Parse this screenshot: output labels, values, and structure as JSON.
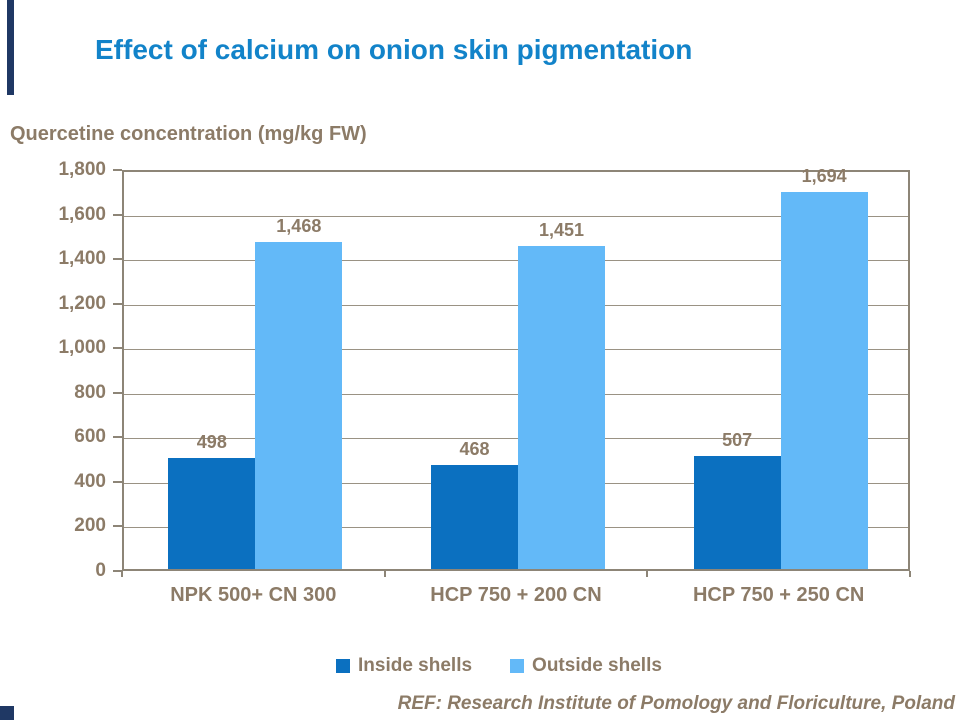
{
  "page": {
    "title": "Effect of calcium on onion skin pigmentation",
    "ref_note": "REF: Research Institute of Pomology and Floriculture, Poland"
  },
  "colors": {
    "title_blue": "#1283C9",
    "text_brown": "#8C7B67",
    "axis_line": "#8D8577",
    "grid_line": "#9A9284",
    "inside_shells_bar": "#0B70C0",
    "outside_shells_bar": "#63B9F8",
    "decor_navy": "#1F3864"
  },
  "chart_data": {
    "type": "bar",
    "title": "Effect of calcium on onion skin pigmentation",
    "xlabel": "",
    "ylabel": "Quercetine concentration (mg/kg FW)",
    "categories": [
      "NPK 500+ CN 300",
      "HCP 750 + 200 CN",
      "HCP 750 + 250 CN"
    ],
    "series": [
      {
        "name": "Inside shells",
        "color": "#0B70C0",
        "values": [
          498,
          468,
          507
        ]
      },
      {
        "name": "Outside shells",
        "color": "#63B9F8",
        "values": [
          1468,
          1451,
          1694
        ]
      }
    ],
    "data_labels": [
      [
        "498",
        "468",
        "507"
      ],
      [
        "1,468",
        "1,451",
        "1,694"
      ]
    ],
    "ylim": [
      0,
      1800
    ],
    "ytick_step": 200,
    "ytick_labels": [
      "0",
      "200",
      "400",
      "600",
      "800",
      "1,000",
      "1,200",
      "1,400",
      "1,600",
      "1,800"
    ],
    "grid": true,
    "legend_position": "bottom"
  }
}
